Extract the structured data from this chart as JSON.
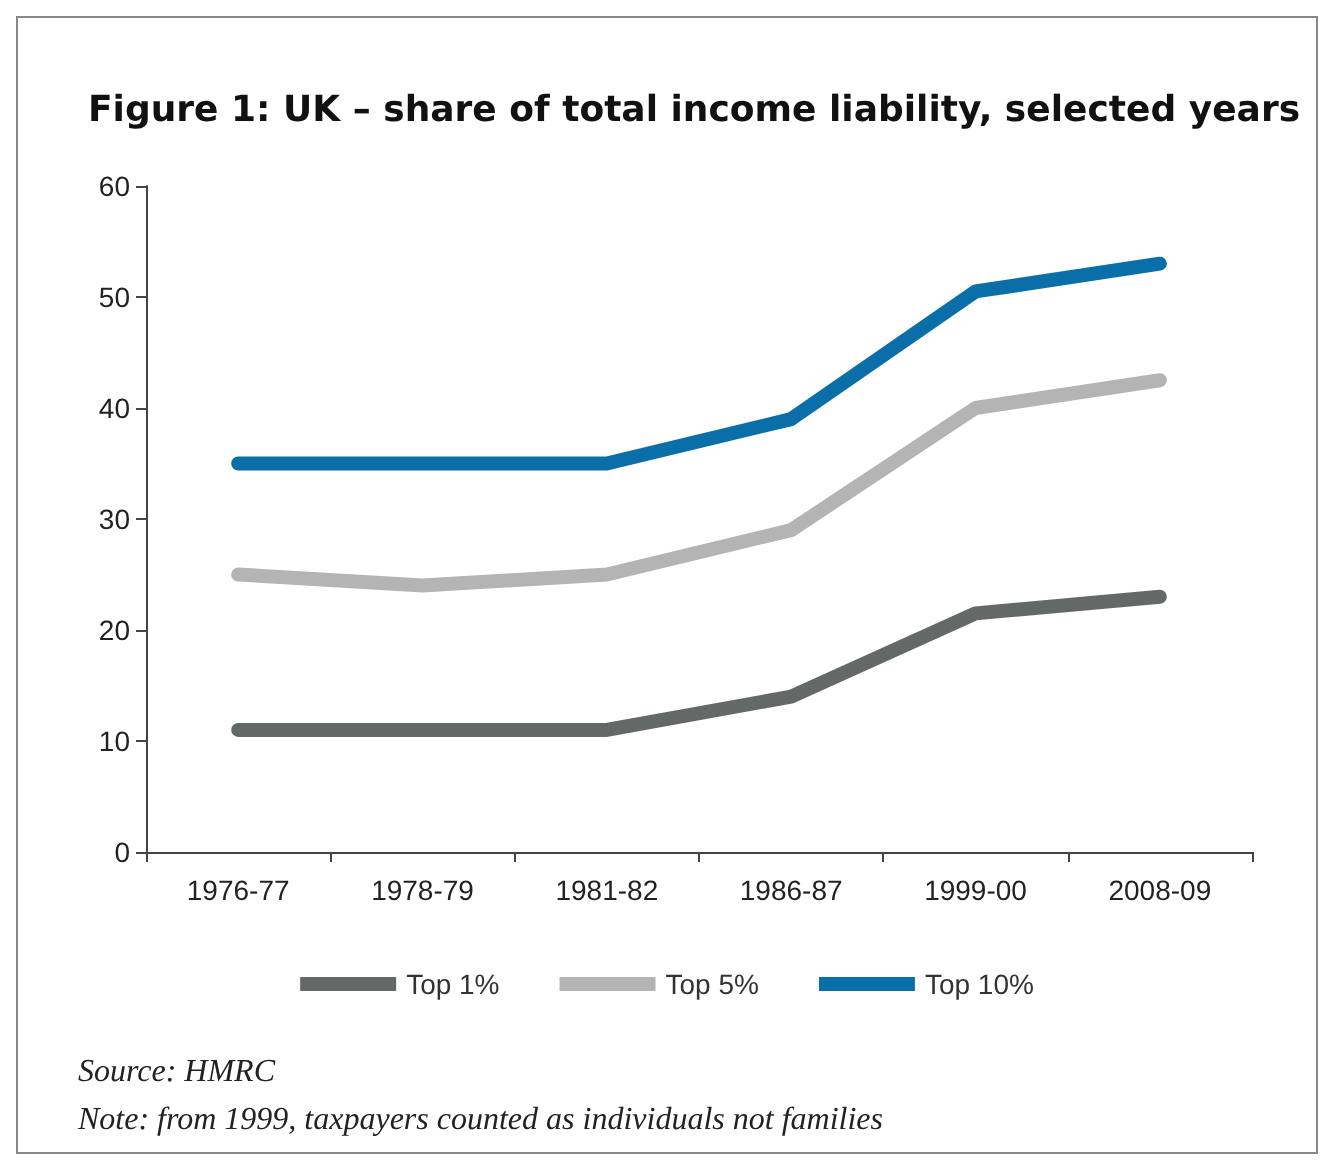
{
  "chart_data": {
    "type": "line",
    "title": "Figure 1: UK – share of total income liability, selected years",
    "categories": [
      "1976-77",
      "1978-79",
      "1981-82",
      "1986-87",
      "1999-00",
      "2008-09"
    ],
    "series": [
      {
        "name": "Top 1%",
        "color": "#646867",
        "values": [
          11,
          11,
          11,
          14,
          21.5,
          23
        ]
      },
      {
        "name": "Top 5%",
        "color": "#b4b4b4",
        "values": [
          25,
          24,
          25,
          29,
          40,
          42.5
        ]
      },
      {
        "name": "Top 10%",
        "color": "#0a6fa8",
        "values": [
          35,
          35,
          35,
          39,
          50.5,
          53
        ]
      }
    ],
    "ylim": [
      0,
      60
    ],
    "yticks": [
      0,
      10,
      20,
      30,
      40,
      50,
      60
    ],
    "grid": false,
    "legend": "bottom",
    "line_style": "solid",
    "annotations": [
      "Source: HMRC",
      "Note: from 1999, taxpayers counted as individuals not families"
    ]
  }
}
